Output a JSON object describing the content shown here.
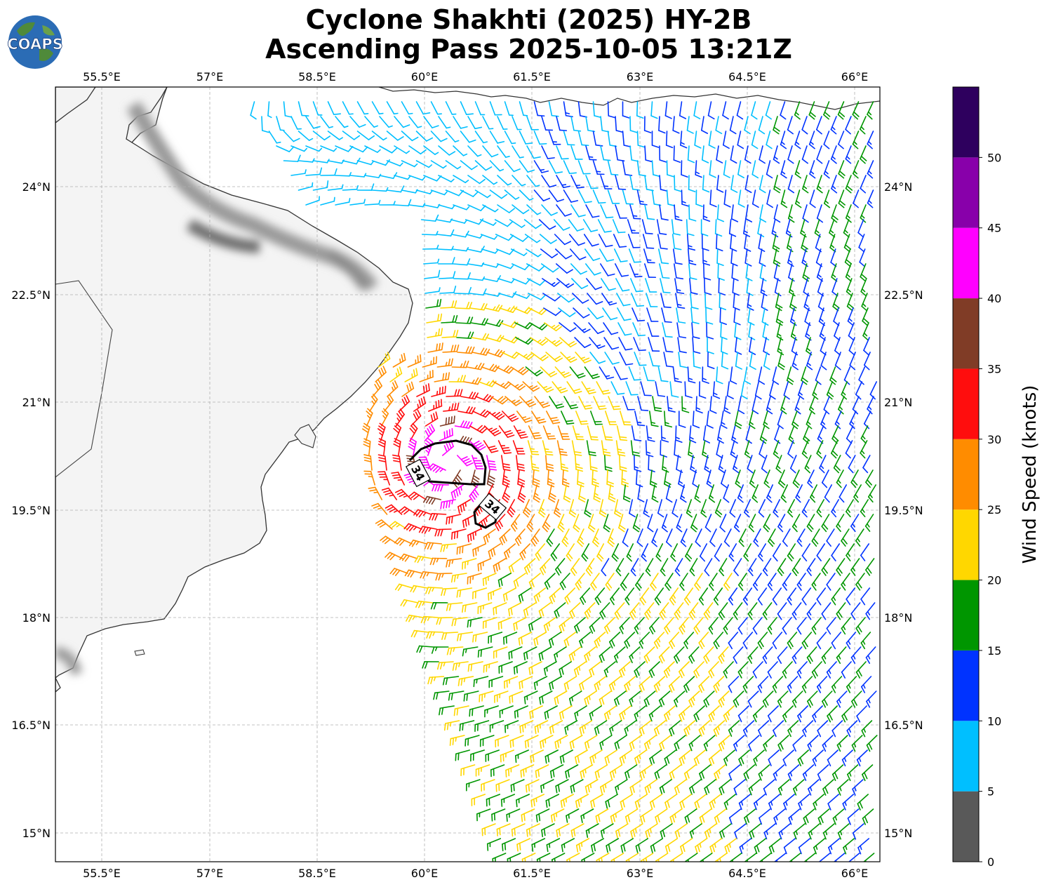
{
  "header": {
    "title_line1": "Cyclone Shakhti (2025) HY-2B",
    "title_line2": "Ascending Pass 2025-10-05 13:21Z",
    "logo_text": "COAPS"
  },
  "map": {
    "lon_ticks": [
      "55.5°E",
      "57°E",
      "58.5°E",
      "60°E",
      "61.5°E",
      "63°E",
      "64.5°E",
      "66°E"
    ],
    "lat_ticks": [
      "24°N",
      "22.5°N",
      "21°N",
      "19.5°N",
      "18°N",
      "16.5°N",
      "15°N"
    ],
    "contour_label": "34",
    "colors": {
      "land_shade": "#e6e6e6",
      "mountain_shade": "#7a7a7a",
      "coastline": "#333333",
      "grid": "#b0b0b0"
    }
  },
  "colorbar": {
    "label": "Wind Speed (knots)",
    "ticks": [
      "0",
      "5",
      "10",
      "15",
      "20",
      "25",
      "30",
      "35",
      "40",
      "45",
      "50"
    ],
    "bins": [
      {
        "min": 0,
        "max": 5,
        "color": "#595959"
      },
      {
        "min": 5,
        "max": 10,
        "color": "#00bfff"
      },
      {
        "min": 10,
        "max": 15,
        "color": "#0033ff"
      },
      {
        "min": 15,
        "max": 20,
        "color": "#009600"
      },
      {
        "min": 20,
        "max": 25,
        "color": "#ffd700"
      },
      {
        "min": 25,
        "max": 30,
        "color": "#ff8c00"
      },
      {
        "min": 30,
        "max": 35,
        "color": "#ff0d0d"
      },
      {
        "min": 35,
        "max": 40,
        "color": "#803c26"
      },
      {
        "min": 40,
        "max": 45,
        "color": "#ff00ff"
      },
      {
        "min": 45,
        "max": 50,
        "color": "#8800aa"
      },
      {
        "min": 50,
        "max": 55,
        "color": "#2e005e"
      }
    ]
  }
}
